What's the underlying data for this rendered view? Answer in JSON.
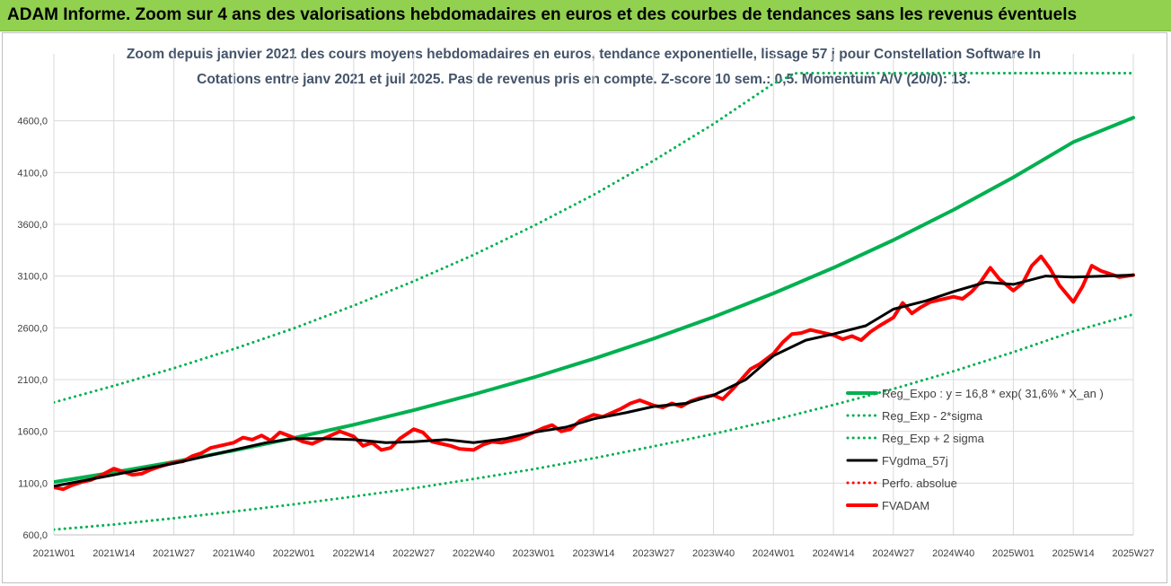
{
  "banner": {
    "title": "ADAM Informe. Zoom sur 4 ans des valorisations hebdomadaires en euros et des courbes de tendances sans les revenus éventuels",
    "background": "#92d050"
  },
  "chart_data": {
    "type": "line",
    "title_line1": "Zoom depuis janvier 2021 des cours moyens hebdomadaires en euros, tendance exponentielle, lissage 57 j pour Constellation Software In",
    "title_line2": "Cotations entre janv 2021 et juil 2025. Pas de revenus pris en compte. Z-score 10 sem.: 0,5. Momentum A/V (20/0): 13.",
    "x_tick_labels": [
      "2021W01",
      "2021W14",
      "2021W27",
      "2021W40",
      "2022W01",
      "2022W14",
      "2022W27",
      "2022W40",
      "2023W01",
      "2023W14",
      "2023W27",
      "2023W40",
      "2024W01",
      "2024W14",
      "2024W27",
      "2024W40",
      "2025W01",
      "2025W14",
      "2025W27"
    ],
    "y_tick_labels": [
      "600,0",
      "1100,0",
      "1600,0",
      "2100,0",
      "2600,0",
      "3100,0",
      "3600,0",
      "4100,0",
      "4600,0"
    ],
    "ylim": [
      600,
      4900
    ],
    "grid": true,
    "legend_position": "right",
    "x_unit": "week index from 2021W01 (13 weeks per tick)",
    "series": [
      {
        "name": "Reg_Expo : y = 16,8 * exp( 31,6% * X_an )",
        "color": "#00b050",
        "style": "solid-thick",
        "x": [
          0,
          13,
          26,
          39,
          52,
          65,
          78,
          91,
          104,
          117,
          130,
          143,
          156,
          169,
          182,
          195,
          208,
          221,
          234
        ],
        "y": [
          1110,
          1204,
          1305,
          1415,
          1535,
          1664,
          1804,
          1957,
          2121,
          2301,
          2495,
          2705,
          2933,
          3180,
          3448,
          3739,
          4054,
          4395,
          4630
        ]
      },
      {
        "name": "Reg_Exp - 2*sigma",
        "color": "#00b050",
        "style": "dotted",
        "x": [
          0,
          13,
          26,
          39,
          52,
          65,
          78,
          91,
          104,
          117,
          130,
          143,
          156,
          169,
          182,
          195,
          208,
          221,
          234
        ],
        "y": [
          650,
          700,
          760,
          825,
          895,
          970,
          1050,
          1140,
          1235,
          1340,
          1455,
          1575,
          1710,
          1855,
          2010,
          2180,
          2365,
          2565,
          2730
        ]
      },
      {
        "name": "Reg_Exp + 2 sigma",
        "color": "#00b050",
        "style": "dotted",
        "x": [
          0,
          13,
          26,
          39,
          52,
          65,
          78,
          91,
          104,
          117,
          130,
          143,
          156,
          161,
          211,
          234
        ],
        "y": [
          1880,
          2040,
          2210,
          2395,
          2595,
          2815,
          3050,
          3305,
          3585,
          3885,
          4215,
          4570,
          4960,
          5060,
          5060,
          5060
        ]
      },
      {
        "name": "FVgdma_57j",
        "color": "#000000",
        "style": "solid",
        "x": [
          0,
          6,
          13,
          20,
          26,
          33,
          39,
          46,
          52,
          58,
          65,
          72,
          78,
          85,
          91,
          98,
          104,
          111,
          117,
          124,
          130,
          137,
          143,
          150,
          156,
          163,
          169,
          176,
          182,
          189,
          195,
          202,
          208,
          215,
          221,
          228,
          234
        ],
        "y": [
          1070,
          1120,
          1180,
          1240,
          1290,
          1360,
          1420,
          1490,
          1530,
          1530,
          1520,
          1490,
          1500,
          1520,
          1490,
          1530,
          1590,
          1640,
          1720,
          1780,
          1840,
          1870,
          1950,
          2100,
          2330,
          2480,
          2540,
          2620,
          2780,
          2860,
          2950,
          3040,
          3020,
          3100,
          3090,
          3100,
          3110
        ]
      },
      {
        "name": "Perfo. absolue",
        "color": "#ff0000",
        "style": "dotted",
        "x": [],
        "y": []
      },
      {
        "name": "FVADAM",
        "color": "#ff0000",
        "style": "solid-thick",
        "x": [
          0,
          2,
          4,
          6,
          8,
          10,
          13,
          15,
          17,
          19,
          21,
          23,
          26,
          28,
          30,
          32,
          34,
          36,
          39,
          41,
          43,
          45,
          47,
          49,
          52,
          54,
          56,
          58,
          60,
          62,
          65,
          67,
          69,
          71,
          73,
          75,
          78,
          80,
          82,
          84,
          86,
          88,
          91,
          93,
          95,
          97,
          99,
          101,
          104,
          106,
          108,
          110,
          112,
          114,
          117,
          119,
          121,
          123,
          125,
          127,
          130,
          132,
          134,
          136,
          138,
          140,
          143,
          145,
          147,
          149,
          151,
          153,
          156,
          158,
          160,
          162,
          164,
          166,
          169,
          171,
          173,
          175,
          177,
          179,
          182,
          184,
          186,
          188,
          190,
          192,
          195,
          197,
          199,
          201,
          203,
          205,
          208,
          210,
          212,
          214,
          216,
          218,
          221,
          223,
          225,
          227,
          229,
          231,
          234
        ],
        "y": [
          1060,
          1040,
          1080,
          1110,
          1130,
          1170,
          1240,
          1210,
          1180,
          1190,
          1230,
          1260,
          1300,
          1310,
          1360,
          1390,
          1440,
          1460,
          1490,
          1540,
          1520,
          1560,
          1510,
          1590,
          1540,
          1500,
          1480,
          1520,
          1560,
          1600,
          1550,
          1460,
          1490,
          1420,
          1440,
          1530,
          1620,
          1590,
          1500,
          1480,
          1460,
          1430,
          1420,
          1470,
          1500,
          1490,
          1510,
          1530,
          1590,
          1630,
          1660,
          1600,
          1620,
          1700,
          1760,
          1740,
          1780,
          1820,
          1870,
          1900,
          1850,
          1830,
          1870,
          1840,
          1890,
          1920,
          1950,
          1910,
          2000,
          2100,
          2200,
          2250,
          2350,
          2460,
          2540,
          2550,
          2580,
          2560,
          2530,
          2490,
          2520,
          2480,
          2560,
          2620,
          2700,
          2840,
          2740,
          2800,
          2850,
          2870,
          2900,
          2880,
          2950,
          3050,
          3180,
          3070,
          2960,
          3030,
          3200,
          3290,
          3170,
          3010,
          2850,
          3000,
          3200,
          3150,
          3120,
          3090,
          3110
        ]
      }
    ]
  }
}
